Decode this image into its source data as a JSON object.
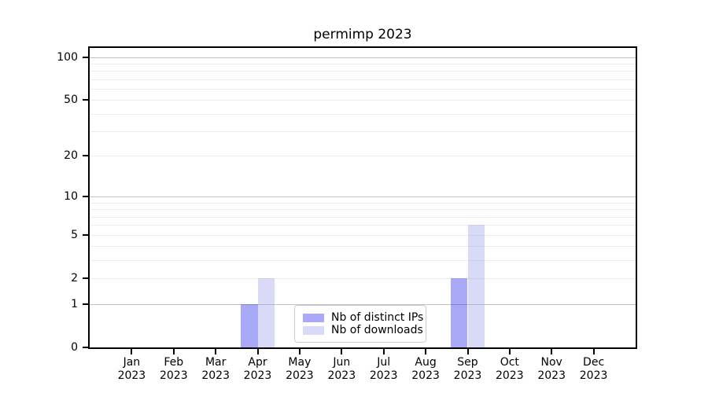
{
  "chart_data": {
    "type": "bar",
    "title": "permimp 2023",
    "xlabel": "",
    "ylabel": "",
    "y_scale": "log10(1+x)",
    "ylim": [
      0,
      116
    ],
    "yticks": [
      0,
      1,
      2,
      5,
      10,
      20,
      50,
      100
    ],
    "grid": {
      "major": [
        1,
        10,
        100
      ],
      "minor": [
        2,
        3,
        4,
        5,
        6,
        7,
        8,
        9,
        20,
        30,
        40,
        50,
        60,
        70,
        80,
        90
      ]
    },
    "categories": [
      "Jan\n2023",
      "Feb\n2023",
      "Mar\n2023",
      "Apr\n2023",
      "May\n2023",
      "Jun\n2023",
      "Jul\n2023",
      "Aug\n2023",
      "Sep\n2023",
      "Oct\n2023",
      "Nov\n2023",
      "Dec\n2023"
    ],
    "series": [
      {
        "name": "Nb of distinct IPs",
        "color": "rgba(40,40,238,0.4)",
        "values": [
          0,
          0,
          0,
          1,
          0,
          0,
          0,
          0,
          2,
          0,
          0,
          0
        ]
      },
      {
        "name": "Nb of downloads",
        "color": "rgba(160,160,238,0.4)",
        "values": [
          0,
          0,
          0,
          2,
          0,
          0,
          0,
          0,
          6,
          0,
          0,
          0
        ]
      }
    ],
    "legend_position": "lower center inside plot",
    "grid_on": true
  }
}
